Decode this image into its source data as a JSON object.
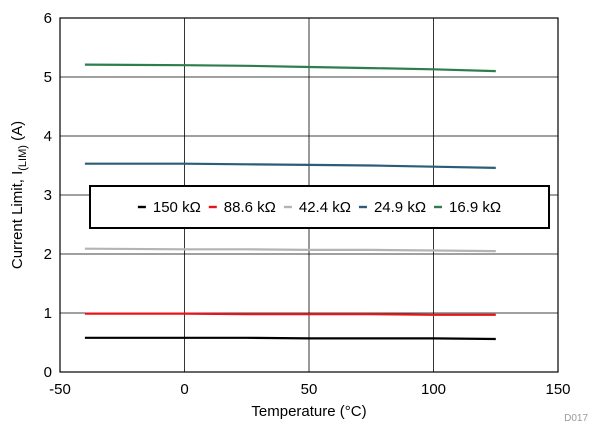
{
  "chart_data": {
    "type": "line",
    "title": "",
    "xlabel": "Temperature (°C)",
    "ylabel_main": "Current Limit, I",
    "ylabel_sub": "(LIM)",
    "ylabel_unit": " (A)",
    "xlim": [
      -50,
      150
    ],
    "ylim": [
      0,
      6
    ],
    "xticks": [
      "-50",
      "0",
      "50",
      "100",
      "150"
    ],
    "yticks": [
      "0",
      "1",
      "2",
      "3",
      "4",
      "5",
      "6"
    ],
    "grid": true,
    "legend_position": "center",
    "series": [
      {
        "name": "150 kΩ",
        "color": "#000000",
        "x": [
          -40,
          0,
          25,
          50,
          75,
          100,
          125
        ],
        "y": [
          0.58,
          0.58,
          0.58,
          0.57,
          0.57,
          0.57,
          0.56
        ]
      },
      {
        "name": "88.6 kΩ",
        "color": "#e8141b",
        "x": [
          -40,
          0,
          25,
          50,
          75,
          100,
          125
        ],
        "y": [
          0.99,
          0.99,
          0.98,
          0.98,
          0.98,
          0.97,
          0.97
        ]
      },
      {
        "name": "42.4 kΩ",
        "color": "#b4b4b4",
        "x": [
          -40,
          0,
          25,
          50,
          75,
          100,
          125
        ],
        "y": [
          2.09,
          2.08,
          2.08,
          2.07,
          2.07,
          2.06,
          2.05
        ]
      },
      {
        "name": "24.9 kΩ",
        "color": "#2b5d78",
        "x": [
          -40,
          0,
          25,
          50,
          75,
          100,
          125
        ],
        "y": [
          3.53,
          3.53,
          3.52,
          3.51,
          3.5,
          3.48,
          3.46
        ]
      },
      {
        "name": "16.9 kΩ",
        "color": "#2e7d4f",
        "x": [
          -40,
          0,
          25,
          50,
          75,
          100,
          125
        ],
        "y": [
          5.21,
          5.2,
          5.19,
          5.17,
          5.15,
          5.13,
          5.1
        ]
      }
    ],
    "code": "D017"
  }
}
